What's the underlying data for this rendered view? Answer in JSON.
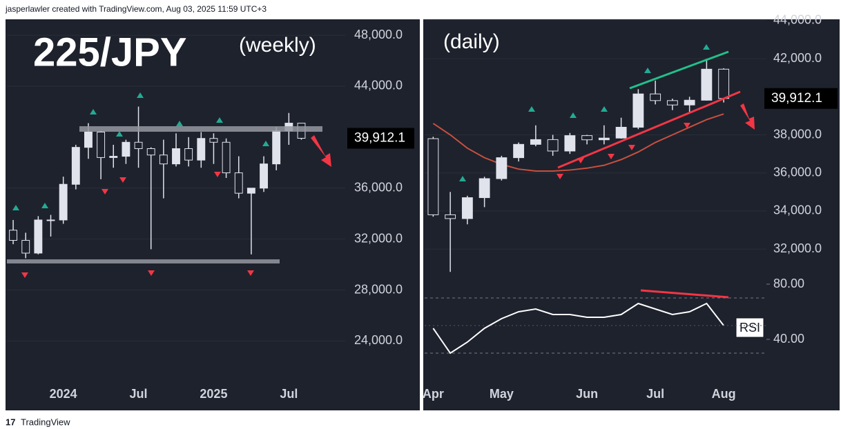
{
  "header": "jasperlawler created with TradingView.com, Aug 03, 2025 11:59 UTC+3",
  "footer": "TradingView",
  "chart_data": [
    {
      "type": "candlestick",
      "title": "225/JPY",
      "subtitle": "(weekly)",
      "categories": [
        null,
        null,
        null,
        null,
        "2024",
        null,
        null,
        null,
        null,
        null,
        "Jul",
        null,
        null,
        null,
        null,
        null,
        "2025",
        null,
        null,
        null,
        null,
        null,
        "Jul",
        null,
        null,
        null,
        null
      ],
      "open": [
        32700,
        31900,
        30900,
        33500,
        33500,
        36300,
        39200,
        40400,
        38400,
        38500,
        39600,
        39100,
        38600,
        37900,
        39100,
        38200,
        39900,
        39600,
        37200,
        35600,
        36000,
        37900,
        40500,
        41100,
        null,
        null,
        null
      ],
      "high": [
        33500,
        32500,
        33800,
        33900,
        36900,
        39400,
        41100,
        40500,
        39400,
        39800,
        42400,
        39200,
        39800,
        40300,
        40000,
        40400,
        40300,
        39900,
        38500,
        36000,
        38500,
        40800,
        41900,
        41100,
        null,
        null,
        null
      ],
      "low": [
        31600,
        30500,
        30800,
        32200,
        33200,
        35900,
        38300,
        36700,
        37600,
        37900,
        37600,
        31200,
        35200,
        37700,
        37700,
        37600,
        37900,
        36800,
        35200,
        30800,
        35700,
        37400,
        39400,
        39800,
        null,
        null,
        null
      ],
      "close": [
        31900,
        30900,
        33500,
        33500,
        36300,
        39200,
        40400,
        38400,
        38500,
        39600,
        39100,
        38600,
        37900,
        39100,
        38200,
        39900,
        39600,
        37200,
        35600,
        36000,
        37900,
        40500,
        41100,
        39912.1,
        null,
        null,
        null
      ],
      "ylim": [
        21100,
        49250
      ],
      "yticks": [
        {
          "value": 24000,
          "label": "24,000.0"
        },
        {
          "value": 28000,
          "label": "28,000.0"
        },
        {
          "value": 32000,
          "label": "32,000.0"
        },
        {
          "value": 36000,
          "label": "36,000.0"
        },
        {
          "value": 44000,
          "label": "44,000.0"
        },
        {
          "value": 48000,
          "label": "48,000.0"
        }
      ],
      "last_price": {
        "value": 39912.1,
        "label": "39,912.1"
      },
      "candle_color": "#e0e3eb",
      "grid": true
    },
    {
      "type": "candlestick",
      "subtitle": "(daily)",
      "categories": [
        "Apr",
        null,
        null,
        null,
        "May",
        null,
        null,
        null,
        null,
        "Jun",
        null,
        null,
        null,
        "Jul",
        null,
        null,
        null,
        "Aug",
        null,
        null
      ],
      "open": [
        37800,
        33800,
        33600,
        34700,
        35700,
        36800,
        37500,
        37750,
        37150,
        37960,
        37740,
        37830,
        38400,
        40150,
        39800,
        39570,
        39820,
        41450,
        null,
        null
      ],
      "high": [
        37900,
        35000,
        34800,
        35800,
        36900,
        37600,
        38500,
        38000,
        38100,
        38000,
        38500,
        38900,
        40400,
        40850,
        39900,
        40000,
        42000,
        41500,
        null,
        null
      ],
      "low": [
        33700,
        30800,
        33300,
        34200,
        35600,
        36600,
        37400,
        36900,
        37000,
        37500,
        37500,
        37800,
        38300,
        39600,
        39300,
        39200,
        39800,
        39700,
        null,
        null
      ],
      "close": [
        33800,
        33600,
        34700,
        35700,
        36800,
        37500,
        37750,
        37150,
        37960,
        37740,
        37830,
        38400,
        40150,
        39800,
        39570,
        39820,
        41450,
        39912.1,
        null,
        null
      ],
      "ylim": [
        30300,
        44070
      ],
      "yticks": [
        {
          "value": 32000,
          "label": "32,000.0"
        },
        {
          "value": 34000,
          "label": "34,000.0"
        },
        {
          "value": 36000,
          "label": "36,000.0"
        },
        {
          "value": 38000,
          "label": "38,000.0"
        },
        {
          "value": 42000,
          "label": "42,000.0"
        },
        {
          "value": 44000,
          "label": "44,000.0"
        }
      ],
      "last_price": {
        "value": 39912.1,
        "label": "39,912.1"
      },
      "moving_average": {
        "color": "#c8503f",
        "values": [
          38600,
          38000,
          37300,
          36800,
          36450,
          36200,
          36100,
          36100,
          36150,
          36250,
          36400,
          36700,
          37100,
          37600,
          38000,
          38400,
          38800,
          39100,
          null,
          null
        ]
      },
      "rsi": {
        "label": "RSI",
        "color": "#ffffff",
        "values": [
          48,
          30,
          38,
          48,
          55,
          60,
          62,
          58,
          58,
          56,
          56,
          58,
          66,
          62,
          58,
          60,
          66,
          50,
          null,
          null
        ],
        "ylim": [
          13.5,
          86
        ],
        "yticks": [
          {
            "value": 40,
            "label": "40.00"
          },
          {
            "value": 80,
            "label": "80.00"
          }
        ]
      },
      "candle_color": "#e0e3eb",
      "grid": true
    }
  ]
}
